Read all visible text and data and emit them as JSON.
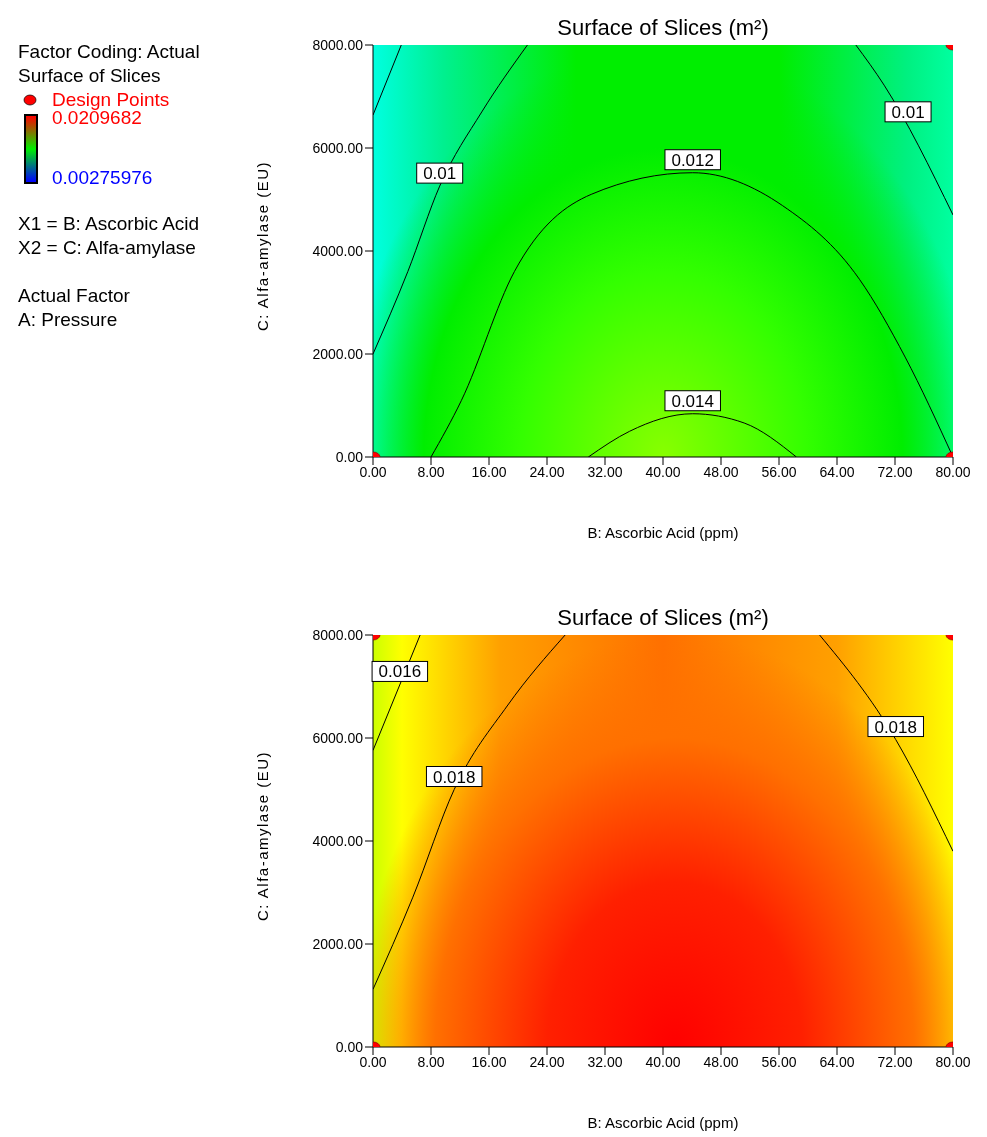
{
  "chart_data": [
    {
      "type": "line",
      "title": "Surface of Slices (m²)",
      "xlabel": "B: Ascorbic Acid (ppm)",
      "ylabel": "C: Alfa-amylase (EU)",
      "clabel": "Surface of Slices",
      "clim": [
        0.00275976,
        0.0209682
      ],
      "cticks": [
        0.00275976,
        0.0209682
      ],
      "legend": "left",
      "grid": false,
      "xlim": [
        0,
        80
      ],
      "xticks": [
        {
          "value": 0,
          "label": "0.00"
        },
        {
          "value": 8,
          "label": "8.00"
        },
        {
          "value": 16,
          "label": "16.00"
        },
        {
          "value": 24,
          "label": "24.00"
        },
        {
          "value": 32,
          "label": "32.00"
        },
        {
          "value": 40,
          "label": "40.00"
        },
        {
          "value": 48,
          "label": "48.00"
        },
        {
          "value": 56,
          "label": "56.00"
        },
        {
          "value": 64,
          "label": "64.00"
        },
        {
          "value": 72,
          "label": "72.00"
        },
        {
          "value": 80,
          "label": "80.00"
        }
      ],
      "ylim": [
        0,
        8000
      ],
      "yticks": [
        {
          "value": 0,
          "label": "0.00"
        },
        {
          "value": 2000,
          "label": "2000.00"
        },
        {
          "value": 4000,
          "label": "4000.00"
        },
        {
          "value": 6000,
          "label": "6000.00"
        },
        {
          "value": 8000,
          "label": "8000.00"
        }
      ],
      "annotations": [
        "Factor Coding: Actual",
        "X1 = B: Ascorbic Acid",
        "X2 = C: Alfa-amylase",
        "Actual Factor",
        "A: Pressure",
        {
          "text": "0.01",
          "x": 9.2,
          "y": 5260
        },
        {
          "text": "0.012",
          "x": 44.1,
          "y": 5520
        },
        {
          "text": "0.014",
          "x": 44.1,
          "y": 840
        },
        {
          "text": "0.01",
          "x": 73.8,
          "y": 6450
        }
      ],
      "series": [
        {
          "color": "#000000",
          "x": [
            0,
            3.9
          ],
          "values": [
            6640,
            8000
          ]
        },
        {
          "color": "#000000",
          "x": [
            0,
            4.8,
            9.2,
            15,
            21.3
          ],
          "values": [
            2000,
            3600,
            5260,
            6700,
            8000
          ]
        },
        {
          "color": "#000000",
          "x": [
            8,
            12.2,
            19.5,
            30.1,
            44.1,
            56.5,
            67.1,
            73.4,
            80
          ],
          "values": [
            0,
            1100,
            3600,
            5100,
            5520,
            4880,
            3450,
            1940,
            0
          ]
        },
        {
          "color": "#000000",
          "x": [
            29.7,
            35.4,
            44.1,
            51.2,
            58.4
          ],
          "values": [
            0,
            500,
            840,
            660,
            0
          ]
        },
        {
          "color": "#000000",
          "x": [
            66.6,
            70.5,
            80
          ],
          "values": [
            8000,
            7220,
            4700
          ]
        },
        {
          "type": "scatter",
          "name": "Design Points",
          "color": "#ff0000",
          "x": [
            0,
            80,
            80
          ],
          "values": [
            0,
            0,
            8000
          ]
        }
      ]
    },
    {
      "type": "line",
      "title": "Surface of Slices (m²)",
      "xlabel": "B: Ascorbic Acid (ppm)",
      "ylabel": "C: Alfa-amylase (EU)",
      "grid": false,
      "xlim": [
        0,
        80
      ],
      "xticks": [
        {
          "value": 0,
          "label": "0.00"
        },
        {
          "value": 8,
          "label": "8.00"
        },
        {
          "value": 16,
          "label": "16.00"
        },
        {
          "value": 24,
          "label": "24.00"
        },
        {
          "value": 32,
          "label": "32.00"
        },
        {
          "value": 40,
          "label": "40.00"
        },
        {
          "value": 48,
          "label": "48.00"
        },
        {
          "value": 56,
          "label": "56.00"
        },
        {
          "value": 64,
          "label": "64.00"
        },
        {
          "value": 72,
          "label": "72.00"
        },
        {
          "value": 80,
          "label": "80.00"
        }
      ],
      "ylim": [
        0,
        8000
      ],
      "yticks": [
        {
          "value": 0,
          "label": "0.00"
        },
        {
          "value": 2000,
          "label": "2000.00"
        },
        {
          "value": 4000,
          "label": "4000.00"
        },
        {
          "value": 6000,
          "label": "6000.00"
        },
        {
          "value": 8000,
          "label": "8000.00"
        }
      ],
      "annotations": [
        {
          "text": "0.016",
          "x": 3.7,
          "y": 7040
        },
        {
          "text": "0.018",
          "x": 11.2,
          "y": 5000
        },
        {
          "text": "0.018",
          "x": 72.1,
          "y": 5970
        }
      ],
      "series": [
        {
          "color": "#000000",
          "x": [
            0,
            6.5
          ],
          "values": [
            5760,
            8000
          ]
        },
        {
          "color": "#000000",
          "x": [
            0,
            5.5,
            11.2,
            18.6,
            26.5
          ],
          "values": [
            1120,
            2910,
            5000,
            6640,
            8000
          ]
        },
        {
          "color": "#000000",
          "x": [
            61.6,
            72.1,
            80
          ],
          "values": [
            8000,
            5970,
            3800
          ]
        },
        {
          "type": "scatter",
          "color": "#ff0000",
          "x": [
            0,
            0,
            80,
            80
          ],
          "values": [
            0,
            8000,
            0,
            8000
          ]
        }
      ]
    }
  ]
}
